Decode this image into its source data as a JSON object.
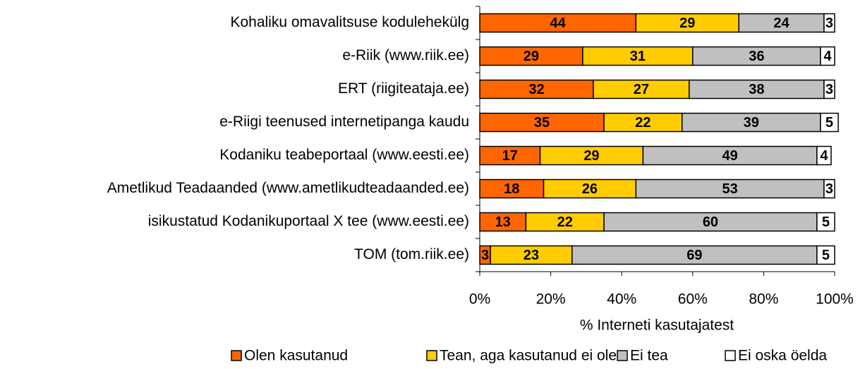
{
  "chart_data": {
    "type": "stacked_bar_horizontal",
    "categories": [
      "Kohaliku omavalitsuse kodulehekülg",
      "e-Riik (www.riik.ee)",
      "ERT (riigiteataja.ee)",
      "e-Riigi teenused internetipanga kaudu",
      "Kodaniku teabeportaal (www.eesti.ee)",
      "Ametlikud Teadaanded (www.ametlikudteadaanded.ee)",
      "isikustatud Kodanikuportaal X tee (www.eesti.ee)",
      "TOM (tom.riik.ee)"
    ],
    "series": [
      {
        "name": "Olen kasutanud",
        "color": "#ff6600",
        "values": [
          44,
          29,
          32,
          35,
          17,
          18,
          13,
          3
        ]
      },
      {
        "name": "Tean, aga kasutanud ei ole",
        "color": "#ffcc00",
        "values": [
          29,
          31,
          27,
          22,
          29,
          26,
          22,
          23
        ]
      },
      {
        "name": "Ei tea",
        "color": "#c0c0c0",
        "values": [
          24,
          36,
          38,
          39,
          49,
          53,
          60,
          69
        ]
      },
      {
        "name": "Ei oska öelda",
        "color": "#ffffff",
        "values": [
          3,
          4,
          3,
          5,
          4,
          3,
          5,
          5
        ]
      }
    ],
    "xlabel": "% Interneti kasutajatest",
    "xlim": [
      0,
      100
    ],
    "xticks": [
      {
        "value": 0,
        "label": "0%"
      },
      {
        "value": 20,
        "label": "20%"
      },
      {
        "value": 40,
        "label": "40%"
      },
      {
        "value": 60,
        "label": "60%"
      },
      {
        "value": 80,
        "label": "80%"
      },
      {
        "value": 100,
        "label": "100%"
      }
    ],
    "legend": "bottom"
  }
}
